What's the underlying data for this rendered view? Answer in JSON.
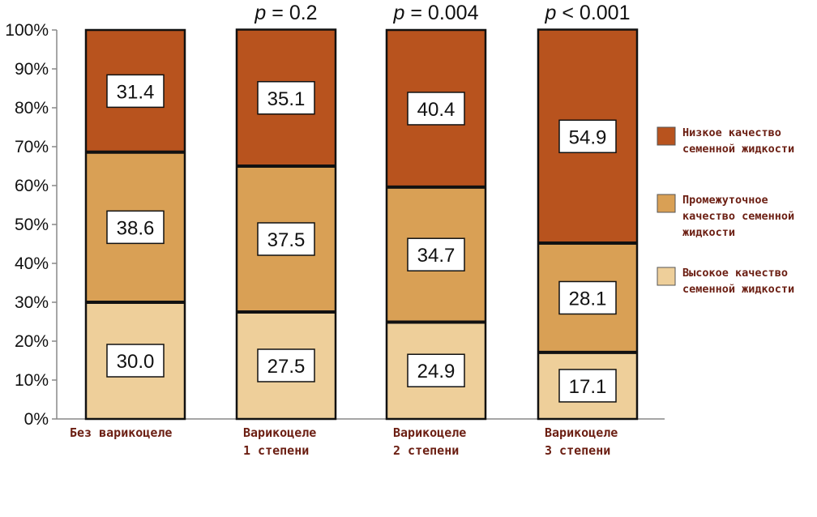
{
  "chart_data": {
    "type": "bar",
    "stacked": true,
    "categories": [
      [
        "Без варикоцеле"
      ],
      [
        "Варикоцеле",
        "1 степени"
      ],
      [
        "Варикоцеле",
        "2 степени"
      ],
      [
        "Варикоцеле",
        "3 степени"
      ]
    ],
    "series": [
      {
        "name": "Высокое качество семенной жидкости",
        "color": "#eecf9a",
        "values": [
          30.0,
          27.5,
          24.9,
          17.1
        ],
        "labels": [
          "30.0",
          "27.5",
          "24.9",
          "17.1"
        ]
      },
      {
        "name": "Промежуточное качество семенной жидкости",
        "color": "#d9a055",
        "values": [
          38.6,
          37.5,
          34.7,
          28.1
        ],
        "labels": [
          "38.6",
          "37.5",
          "34.7",
          "28.1"
        ]
      },
      {
        "name": "Низкое качество семенной жидкости",
        "color": "#b8531e",
        "values": [
          31.4,
          35.1,
          40.4,
          54.9
        ],
        "labels": [
          "31.4",
          "35.1",
          "40.4",
          "54.9"
        ]
      }
    ],
    "p_values": [
      null,
      {
        "prefix": "p",
        "rest": " = 0.2"
      },
      {
        "prefix": "p",
        "rest": " = 0.004"
      },
      {
        "prefix": "p",
        "rest": " < 0.001"
      }
    ],
    "y_ticks": [
      "0%",
      "10%",
      "20%",
      "30%",
      "40%",
      "50%",
      "60%",
      "70%",
      "80%",
      "90%",
      "100%"
    ],
    "ylim": [
      0,
      100
    ],
    "legend": {
      "position": "right",
      "items": [
        {
          "lines": [
            "Низкое качество",
            "семенной жидкости"
          ],
          "color": "#b8531e"
        },
        {
          "lines": [
            "Промежуточное",
            "качество семенной",
            "жидкости"
          ],
          "color": "#d9a055"
        },
        {
          "lines": [
            "Высокое качество",
            "семенной жидкости"
          ],
          "color": "#eecf9a"
        }
      ]
    },
    "xlabel": "",
    "ylabel": "",
    "title": ""
  }
}
